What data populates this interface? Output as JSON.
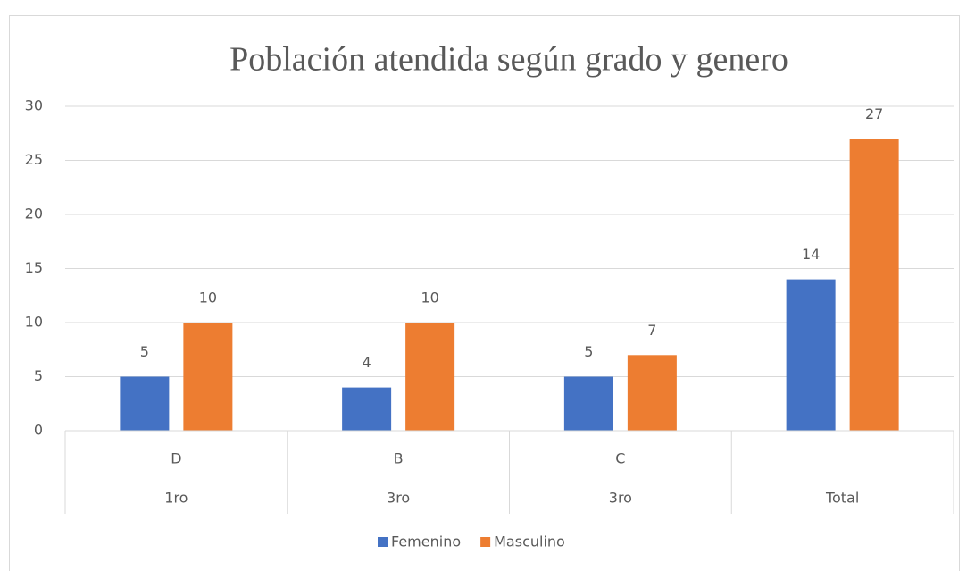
{
  "chart_data": {
    "type": "bar",
    "title": "Población atendida según grado y genero",
    "categories": [
      "D",
      "B",
      "C",
      null
    ],
    "category_groups": [
      "1ro",
      "3ro",
      "3ro",
      "Total"
    ],
    "series": [
      {
        "name": "Femenino",
        "color": "#4472c4",
        "values": [
          5,
          4,
          5,
          14
        ]
      },
      {
        "name": "Masculino",
        "color": "#ed7d31",
        "values": [
          10,
          10,
          7,
          27
        ]
      }
    ],
    "ylim": [
      0,
      30
    ],
    "yticks": [
      0,
      5,
      10,
      15,
      20,
      25,
      30
    ],
    "grid": true,
    "legend": "bottom"
  }
}
